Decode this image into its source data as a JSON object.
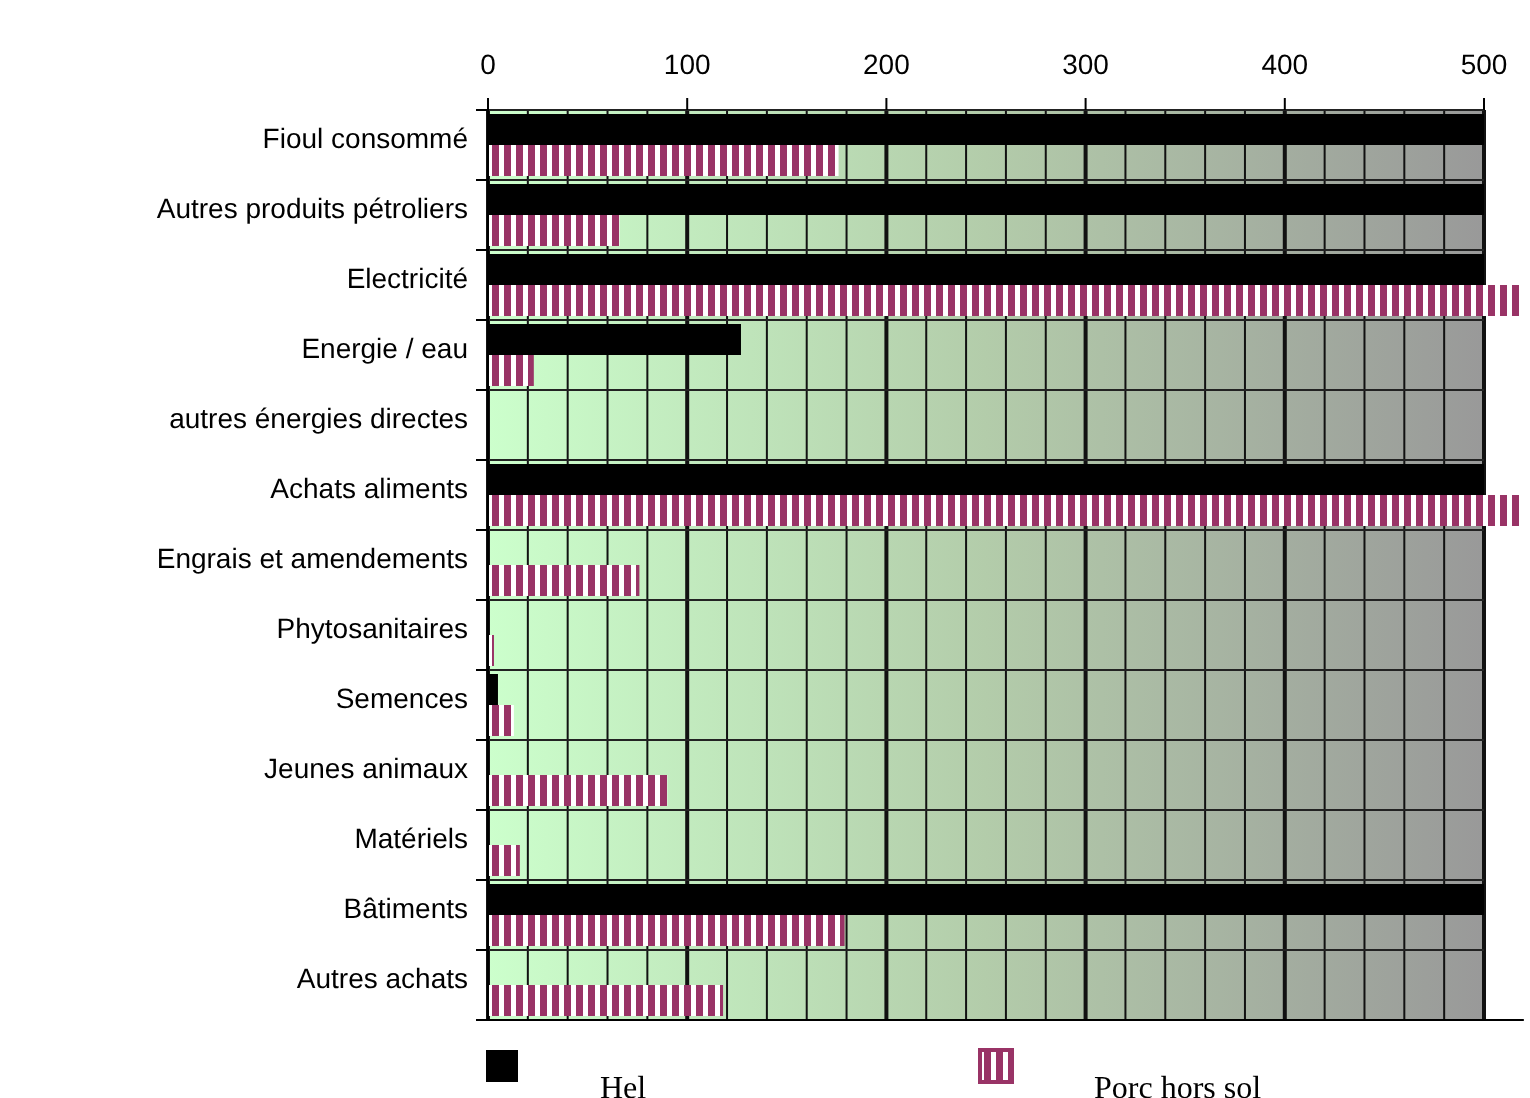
{
  "chart_data": {
    "type": "bar",
    "orientation": "horizontal",
    "categories": [
      "Fioul consommé",
      "Autres produits pétroliers",
      "Electricité",
      "Energie / eau",
      "autres énergies directes",
      "Achats aliments",
      "Engrais et amendements",
      "Phytosanitaires",
      "Semences",
      "Jeunes animaux",
      "Matériels",
      "Bâtiments",
      "Autres achats"
    ],
    "series": [
      {
        "name": "Hel",
        "color": "#000000",
        "values": [
          500,
          500,
          500,
          127,
          0,
          500,
          0,
          0,
          5,
          0,
          0,
          500,
          0
        ]
      },
      {
        "name": "Porc hors sol",
        "color": "#993366",
        "values": [
          176,
          66,
          520,
          23,
          0,
          520,
          76,
          3,
          13,
          90,
          16,
          179,
          118
        ]
      }
    ],
    "xlim": [
      0,
      520
    ],
    "xticks": [
      0,
      {
        "value": 20,
        "label": null
      },
      {
        "value": 40,
        "label": null
      },
      {
        "value": 60,
        "label": null
      },
      {
        "value": 80,
        "label": null
      },
      100,
      {
        "value": 120,
        "label": null
      },
      {
        "value": 140,
        "label": null
      },
      {
        "value": 160,
        "label": null
      },
      {
        "value": 180,
        "label": null
      },
      200,
      {
        "value": 220,
        "label": null
      },
      {
        "value": 240,
        "label": null
      },
      {
        "value": 260,
        "label": null
      },
      {
        "value": 280,
        "label": null
      },
      300,
      {
        "value": 320,
        "label": null
      },
      {
        "value": 340,
        "label": null
      },
      {
        "value": 360,
        "label": null
      },
      {
        "value": 380,
        "label": null
      },
      400,
      {
        "value": 420,
        "label": null
      },
      {
        "value": 440,
        "label": null
      },
      {
        "value": 460,
        "label": null
      },
      {
        "value": 480,
        "label": null
      },
      500
    ],
    "grid": "x",
    "legend": "bottom"
  }
}
